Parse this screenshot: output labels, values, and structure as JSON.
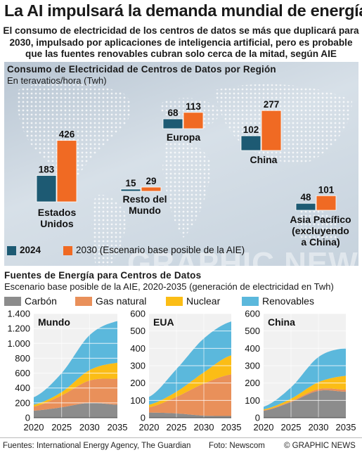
{
  "header": {
    "title": "La AI impulsará la demanda mundial de energía",
    "subtitle_lines": [
      "El consumo de electricidad de los centros de datos se más que duplicará para",
      "2030, impulsado por aplicaciones de inteligencia artificial, pero es probable",
      "que las fuentes renovables cubran solo cerca de la mitad, según AIE"
    ]
  },
  "map_section": {
    "heading": "Consumo de Electricidad de Centros de Datos por Región",
    "unit": "En teravatios/hora (Twh)",
    "legend": {
      "label_2024": "2024",
      "label_2030": "2030 (Escenario base posible de la AIE)"
    }
  },
  "areas_section": {
    "heading": "Fuentes de Energía para Centros de Datos",
    "unit": "Escenario base posible de la AIE, 2020-2035 (generación de electricidad en Twh)",
    "legend": [
      "Carbón",
      "Gas natural",
      "Nuclear",
      "Renovables"
    ]
  },
  "colors": {
    "bar_2024": "#1d5a73",
    "bar_2030": "#f06a23",
    "carbon": "#8c8c8c",
    "gas": "#e9905a",
    "nuclear": "#fbbd16",
    "renovables": "#5bb8dc"
  },
  "chart_data": [
    {
      "type": "bar",
      "title": "Consumo de Electricidad de Centros de Datos por Región",
      "categories": [
        "Estados Unidos",
        "Europa",
        "China",
        "Resto del Mundo",
        "Asia Pacífico (excluyendo a China)"
      ],
      "series": [
        {
          "name": "2024",
          "values": [
            183,
            68,
            102,
            15,
            48
          ]
        },
        {
          "name": "2030 (Escenario base posible de la AIE)",
          "values": [
            426,
            113,
            277,
            29,
            101
          ]
        }
      ],
      "category_labels": [
        [
          "Estados",
          "Unidos"
        ],
        [
          "Europa"
        ],
        [
          "China"
        ],
        [
          "Resto del",
          "Mundo"
        ],
        [
          "Asia Pacífico",
          "(excluyendo",
          "a China)"
        ]
      ]
    },
    {
      "type": "area",
      "stacked": true,
      "title": "Mundo",
      "x": [
        2020,
        2025,
        2030,
        2035
      ],
      "ylim": [
        0,
        1400
      ],
      "yticks": [
        0,
        200,
        400,
        600,
        800,
        1000,
        1200,
        1400
      ],
      "ytick_labels": [
        "0",
        "200",
        "400",
        "600",
        "800",
        "1.000",
        "1.200",
        "1.400"
      ],
      "series": [
        {
          "name": "Carbón",
          "values": [
            95,
            140,
            200,
            175
          ]
        },
        {
          "name": "Gas natural",
          "values": [
            55,
            160,
            300,
            350
          ]
        },
        {
          "name": "Nuclear",
          "values": [
            25,
            45,
            140,
            215
          ]
        },
        {
          "name": "Renovables",
          "values": [
            100,
            255,
            470,
            560
          ]
        }
      ]
    },
    {
      "type": "area",
      "stacked": true,
      "title": "EUA",
      "x": [
        2020,
        2025,
        2030,
        2035
      ],
      "ylim": [
        0,
        600
      ],
      "yticks": [
        0,
        100,
        200,
        300,
        400,
        500,
        600
      ],
      "ytick_labels": [
        "0",
        "100",
        "200",
        "300",
        "400",
        "500",
        "600"
      ],
      "series": [
        {
          "name": "Carbón",
          "values": [
            30,
            25,
            12,
            10
          ]
        },
        {
          "name": "Gas natural",
          "values": [
            30,
            95,
            185,
            240
          ]
        },
        {
          "name": "Nuclear",
          "values": [
            15,
            30,
            65,
            110
          ]
        },
        {
          "name": "Renovables",
          "values": [
            45,
            130,
            195,
            195
          ]
        }
      ]
    },
    {
      "type": "area",
      "stacked": true,
      "title": "China",
      "x": [
        2020,
        2025,
        2030,
        2035
      ],
      "ylim": [
        0,
        600
      ],
      "yticks": [
        0,
        100,
        200,
        300,
        400,
        500,
        600
      ],
      "ytick_labels": [
        "0",
        "100",
        "200",
        "300",
        "400",
        "500",
        "600"
      ],
      "series": [
        {
          "name": "Carbón",
          "values": [
            40,
            90,
            155,
            150
          ]
        },
        {
          "name": "Gas natural",
          "values": [
            3,
            5,
            10,
            12
          ]
        },
        {
          "name": "Nuclear",
          "values": [
            5,
            15,
            40,
            80
          ]
        },
        {
          "name": "Renovables",
          "values": [
            15,
            65,
            145,
            160
          ]
        }
      ]
    }
  ],
  "footer": {
    "sources": "Fuentes: International Energy Agency, The Guardian",
    "photo": "Foto: Newscom",
    "credit": "© GRAPHIC NEWS"
  }
}
